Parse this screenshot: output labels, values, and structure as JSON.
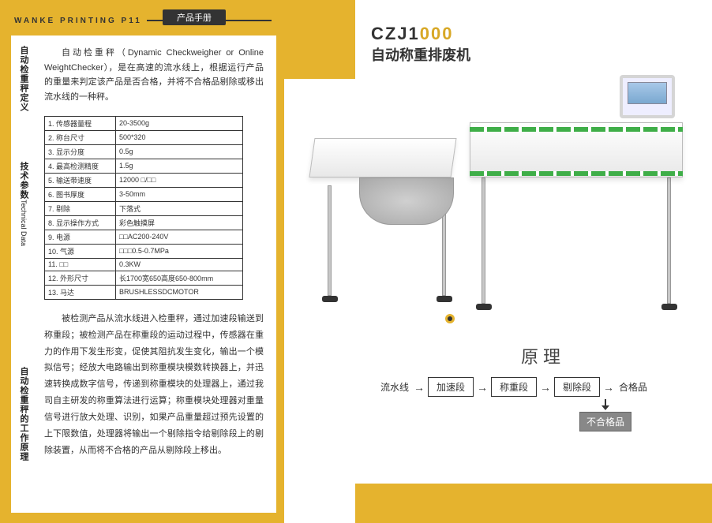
{
  "header": {
    "brand": "WANKE PRINTING  P11",
    "badge": "产品手册"
  },
  "product": {
    "model_prefix": "CZJ1",
    "model_suffix": "000",
    "name_cn": "自动称重排废机"
  },
  "section_labels": {
    "definition": "自动检重秤定义",
    "tech_cn": "技术参数",
    "tech_en": "Technical Data",
    "working": "自动检重秤的工作原理"
  },
  "intro": "自动检重秤（Dynamic Checkweigher or Online WeightChecker），是在高速的流水线上，根据运行产品的重量来判定该产品是否合格，并将不合格品剔除或移出流水线的一种秤。",
  "specs": [
    {
      "k": "1. 传感器量程",
      "v": "20-3500g"
    },
    {
      "k": "2. 称台尺寸",
      "v": "500*320"
    },
    {
      "k": "3. 显示分度",
      "v": "0.5g"
    },
    {
      "k": "4. 最高检测精度",
      "v": "1.5g"
    },
    {
      "k": "5. 输送带速度",
      "v": "12000 □/□□"
    },
    {
      "k": "6. 图书厚度",
      "v": "3-50mm"
    },
    {
      "k": "7. 剔除",
      "v": "下落式"
    },
    {
      "k": "8. 显示操作方式",
      "v": "彩色触摸屏"
    },
    {
      "k": "9. 电源",
      "v": "□□AC200-240V"
    },
    {
      "k": "10. 气源",
      "v": "□□□0.5-0.7MPa"
    },
    {
      "k": "11. □□",
      "v": "0.3KW"
    },
    {
      "k": "12. 外形尺寸",
      "v": "长1700宽650高度650-800mm"
    },
    {
      "k": "13. 马达",
      "v": "BRUSHLESSDCMOTOR"
    }
  ],
  "working": "被检测产品从流水线进入检重秤，通过加速段输送到称重段；被检测产品在称重段的运动过程中，传感器在重力的作用下发生形变，促使其阻抗发生变化，输出一个模拟信号；经放大电路输出到称重模块模数转换器上，并迅速转换成数字信号，传递到称重模块的处理器上，通过我司自主研发的称重算法进行运算；称重模块处理器对重量信号进行放大处理、识别，如果产品重量超过预先设置的上下限数值，处理器将输出一个剔除指令给剔除段上的剔除装置，从而将不合格的产品从剔除段上移出。",
  "principle": {
    "title": "原理",
    "start": "流水线",
    "box1": "加速段",
    "box2": "称重段",
    "box3": "剔除段",
    "end": "合格品",
    "reject": "不合格品"
  },
  "colors": {
    "yellow": "#e5b32e",
    "text": "#333333"
  }
}
